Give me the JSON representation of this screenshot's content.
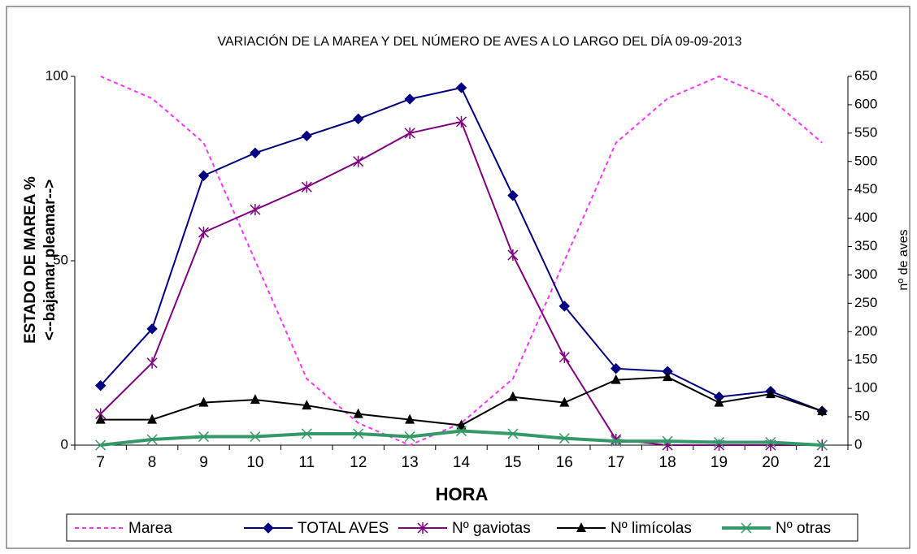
{
  "chart_data": {
    "type": "line",
    "title": "VARIACIÓN DE LA MAREA Y DEL NÚMERO DE AVES A LO LARGO DEL DÍA 09-09-2013",
    "x_label": "HORA",
    "y_label": "ESTADO DE MAREA %",
    "y_label_2": "<--bajamar        pleamar-->",
    "y2_label": "nº de aves",
    "categories": [
      7,
      8,
      9,
      10,
      11,
      12,
      13,
      14,
      15,
      16,
      17,
      18,
      19,
      20,
      21
    ],
    "ylim": [
      0,
      100
    ],
    "yticks": [
      0,
      50,
      100
    ],
    "y2lim": [
      0,
      650
    ],
    "y2ticks": [
      0,
      50,
      100,
      150,
      200,
      250,
      300,
      350,
      400,
      450,
      500,
      550,
      600,
      650
    ],
    "legend": "bottom",
    "series": [
      {
        "name": "Marea",
        "color": "#ff33ff",
        "marker": "none",
        "dash": true,
        "values": [
          100,
          94,
          82,
          50,
          18,
          6,
          0,
          6,
          18,
          50,
          82,
          94,
          100,
          94,
          82
        ]
      },
      {
        "name": "TOTAL AVES",
        "color": "#000080",
        "marker": "diamond",
        "axis": "y2",
        "values": [
          105,
          205,
          475,
          515,
          545,
          575,
          610,
          630,
          440,
          245,
          135,
          130,
          85,
          95,
          60
        ]
      },
      {
        "name": "Nº gaviotas",
        "color": "#800080",
        "marker": "star",
        "axis": "y2",
        "values": [
          55,
          145,
          375,
          415,
          455,
          500,
          550,
          570,
          335,
          155,
          10,
          0,
          0,
          0,
          0
        ]
      },
      {
        "name": "Nº limícolas",
        "color": "#000000",
        "marker": "triangle",
        "axis": "y2",
        "values": [
          45,
          45,
          75,
          80,
          70,
          55,
          45,
          35,
          85,
          75,
          115,
          120,
          75,
          90,
          60
        ]
      },
      {
        "name": "Nº otras",
        "color": "#339966",
        "marker": "x",
        "axis": "y2",
        "width": 4,
        "values": [
          0,
          10,
          15,
          15,
          20,
          20,
          15,
          25,
          20,
          12,
          7,
          7,
          5,
          5,
          0
        ]
      }
    ]
  }
}
